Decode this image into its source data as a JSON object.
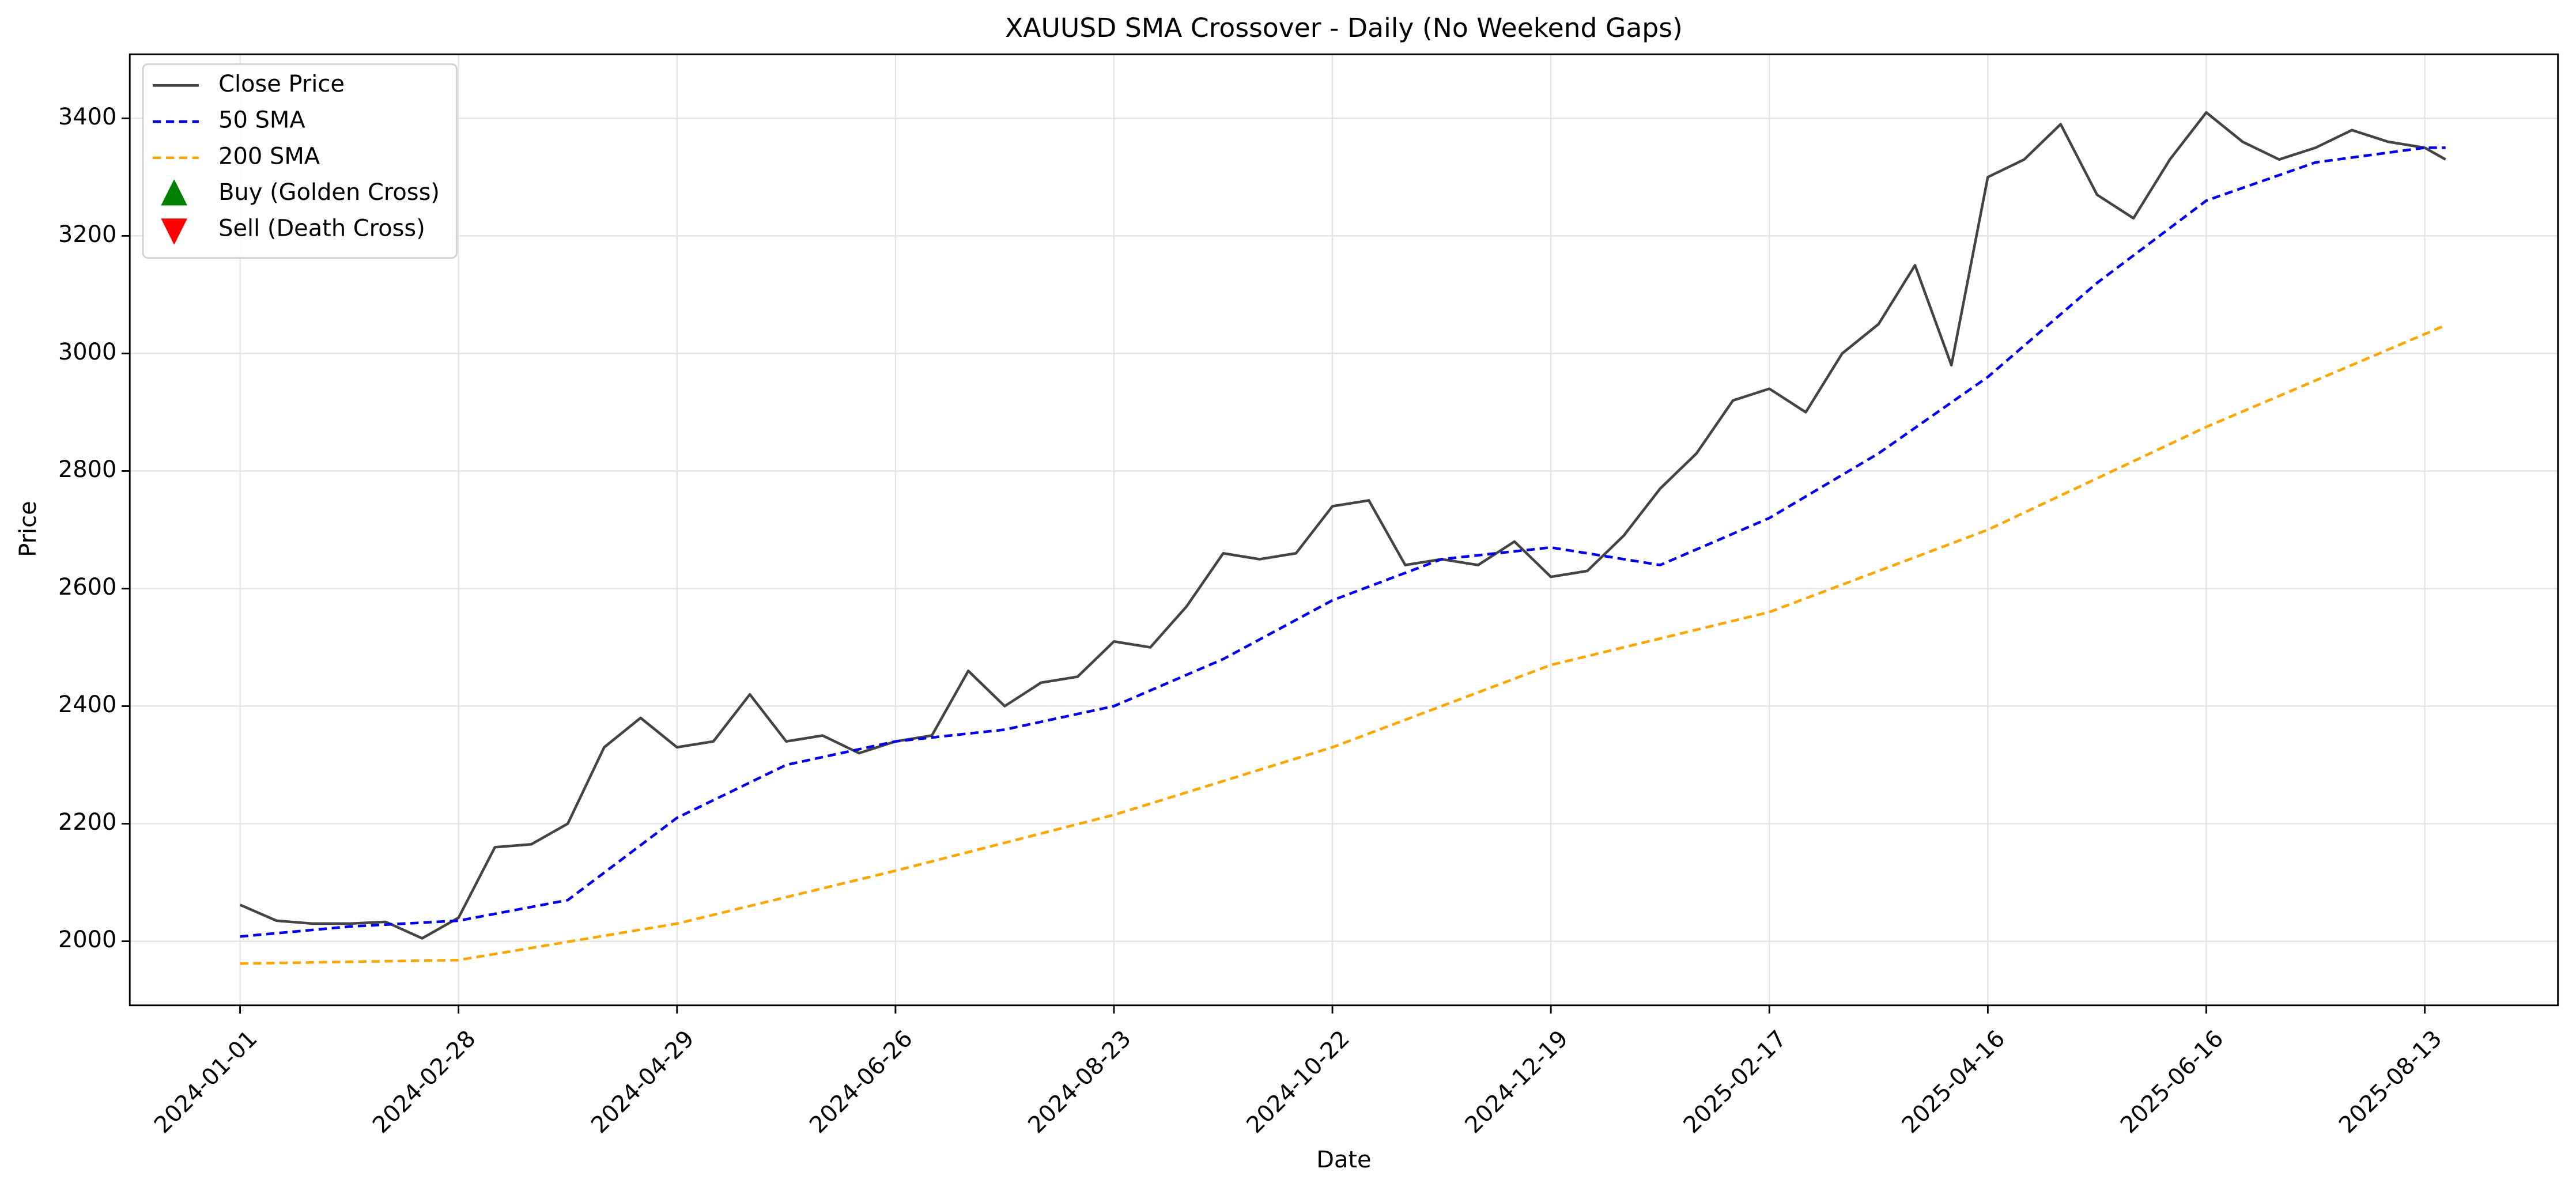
{
  "chart_data": {
    "type": "line",
    "title": "XAUUSD SMA Crossover - Daily (No Weekend Gaps)",
    "xlabel": "Date",
    "ylabel": "Price",
    "xlim": [
      -21.2,
      445.6
    ],
    "ylim": [
      1891,
      3509
    ],
    "xticks": [
      {
        "value": 0,
        "label": "2024-01-01"
      },
      {
        "value": 42,
        "label": "2024-02-28"
      },
      {
        "value": 84,
        "label": "2024-04-29"
      },
      {
        "value": 126,
        "label": "2024-06-26"
      },
      {
        "value": 168,
        "label": "2024-08-23"
      },
      {
        "value": 210,
        "label": "2024-10-22"
      },
      {
        "value": 252,
        "label": "2024-12-19"
      },
      {
        "value": 294,
        "label": "2025-02-17"
      },
      {
        "value": 336,
        "label": "2025-04-16"
      },
      {
        "value": 378,
        "label": "2025-06-16"
      },
      {
        "value": 420,
        "label": "2025-08-13"
      }
    ],
    "yticks": [
      2000,
      2200,
      2400,
      2600,
      2800,
      3000,
      3200,
      3400
    ],
    "grid": true,
    "legend": "upper left",
    "series": [
      {
        "name": "Close Price",
        "color": "#444444",
        "dash": "solid",
        "x": [
          0,
          7,
          14,
          21,
          28,
          35,
          42,
          49,
          56,
          63,
          70,
          77,
          84,
          91,
          98,
          105,
          112,
          119,
          126,
          133,
          140,
          147,
          154,
          161,
          168,
          175,
          182,
          189,
          196,
          203,
          210,
          217,
          224,
          231,
          238,
          245,
          252,
          259,
          266,
          273,
          280,
          287,
          294,
          301,
          308,
          315,
          322,
          329,
          336,
          343,
          350,
          357,
          364,
          371,
          378,
          385,
          392,
          399,
          406,
          413,
          420,
          424
        ],
        "values": [
          2062,
          2035,
          2030,
          2030,
          2033,
          2005,
          2040,
          2160,
          2165,
          2200,
          2330,
          2380,
          2330,
          2340,
          2420,
          2340,
          2350,
          2320,
          2340,
          2350,
          2460,
          2400,
          2440,
          2450,
          2510,
          2500,
          2570,
          2660,
          2650,
          2660,
          2740,
          2750,
          2640,
          2650,
          2640,
          2680,
          2620,
          2630,
          2690,
          2770,
          2830,
          2920,
          2940,
          2900,
          3000,
          3050,
          3150,
          2980,
          3300,
          3330,
          3390,
          3270,
          3230,
          3330,
          3410,
          3360,
          3330,
          3350,
          3380,
          3360,
          3350,
          3330
        ]
      },
      {
        "name": "50 SMA",
        "color": "#0000ee",
        "dash": "dashed",
        "x": [
          0,
          21,
          42,
          63,
          84,
          105,
          126,
          147,
          168,
          189,
          210,
          231,
          252,
          273,
          294,
          315,
          336,
          357,
          378,
          399,
          420,
          424
        ],
        "values": [
          2008,
          2025,
          2035,
          2070,
          2210,
          2300,
          2340,
          2360,
          2400,
          2480,
          2580,
          2650,
          2670,
          2640,
          2720,
          2830,
          2960,
          3120,
          3260,
          3325,
          3350,
          3350
        ]
      },
      {
        "name": "200 SMA",
        "color": "#ffa500",
        "dash": "dashed",
        "x": [
          0,
          42,
          84,
          126,
          168,
          210,
          252,
          294,
          336,
          378,
          424
        ],
        "values": [
          1962,
          1968,
          2030,
          2120,
          2215,
          2330,
          2470,
          2560,
          2700,
          2875,
          3048
        ]
      },
      {
        "name": "Buy (Golden Cross)",
        "color": "#008000",
        "marker": "triangle-up",
        "x": [],
        "values": []
      },
      {
        "name": "Sell (Death Cross)",
        "color": "#ff0000",
        "marker": "triangle-down",
        "x": [],
        "values": []
      }
    ]
  }
}
